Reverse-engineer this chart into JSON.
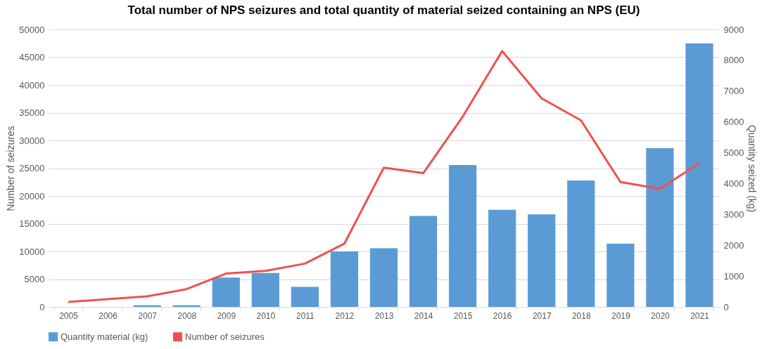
{
  "chart_data": {
    "type": "bar",
    "title": "Total number of NPS seizures and total quantity of material seized containing an NPS (EU)",
    "ylabel": "Number of seizures",
    "y2label": "Quantity seized (kg)",
    "categories": [
      "2005",
      "2006",
      "2007",
      "2008",
      "2009",
      "2010",
      "2011",
      "2012",
      "2013",
      "2014",
      "2015",
      "2016",
      "2017",
      "2018",
      "2019",
      "2020",
      "2021"
    ],
    "series": [
      {
        "name": "Quantity material (kg)",
        "axis": "y2",
        "color": "#5b9bd5",
        "values": [
          0,
          0,
          50,
          50,
          950,
          1100,
          650,
          1800,
          1900,
          2950,
          4600,
          3150,
          3000,
          4100,
          2050,
          5150,
          8550
        ]
      },
      {
        "name": "Number of seizures",
        "type": "line",
        "color": "#f05050",
        "values": [
          900,
          1400,
          1900,
          3200,
          6000,
          6500,
          7800,
          11400,
          25100,
          24100,
          34300,
          46100,
          37600,
          33600,
          22500,
          21300,
          25900
        ]
      }
    ],
    "ylim": [
      0,
      50000
    ],
    "yticks": [
      0,
      5000,
      10000,
      15000,
      20000,
      25000,
      30000,
      35000,
      40000,
      45000,
      50000
    ],
    "y2lim": [
      0,
      9000
    ],
    "y2ticks": [
      0,
      1000,
      2000,
      3000,
      4000,
      5000,
      6000,
      7000,
      8000,
      9000
    ],
    "grid": "y",
    "legend": "bottom",
    "line_style": "solid",
    "marker": "none"
  }
}
